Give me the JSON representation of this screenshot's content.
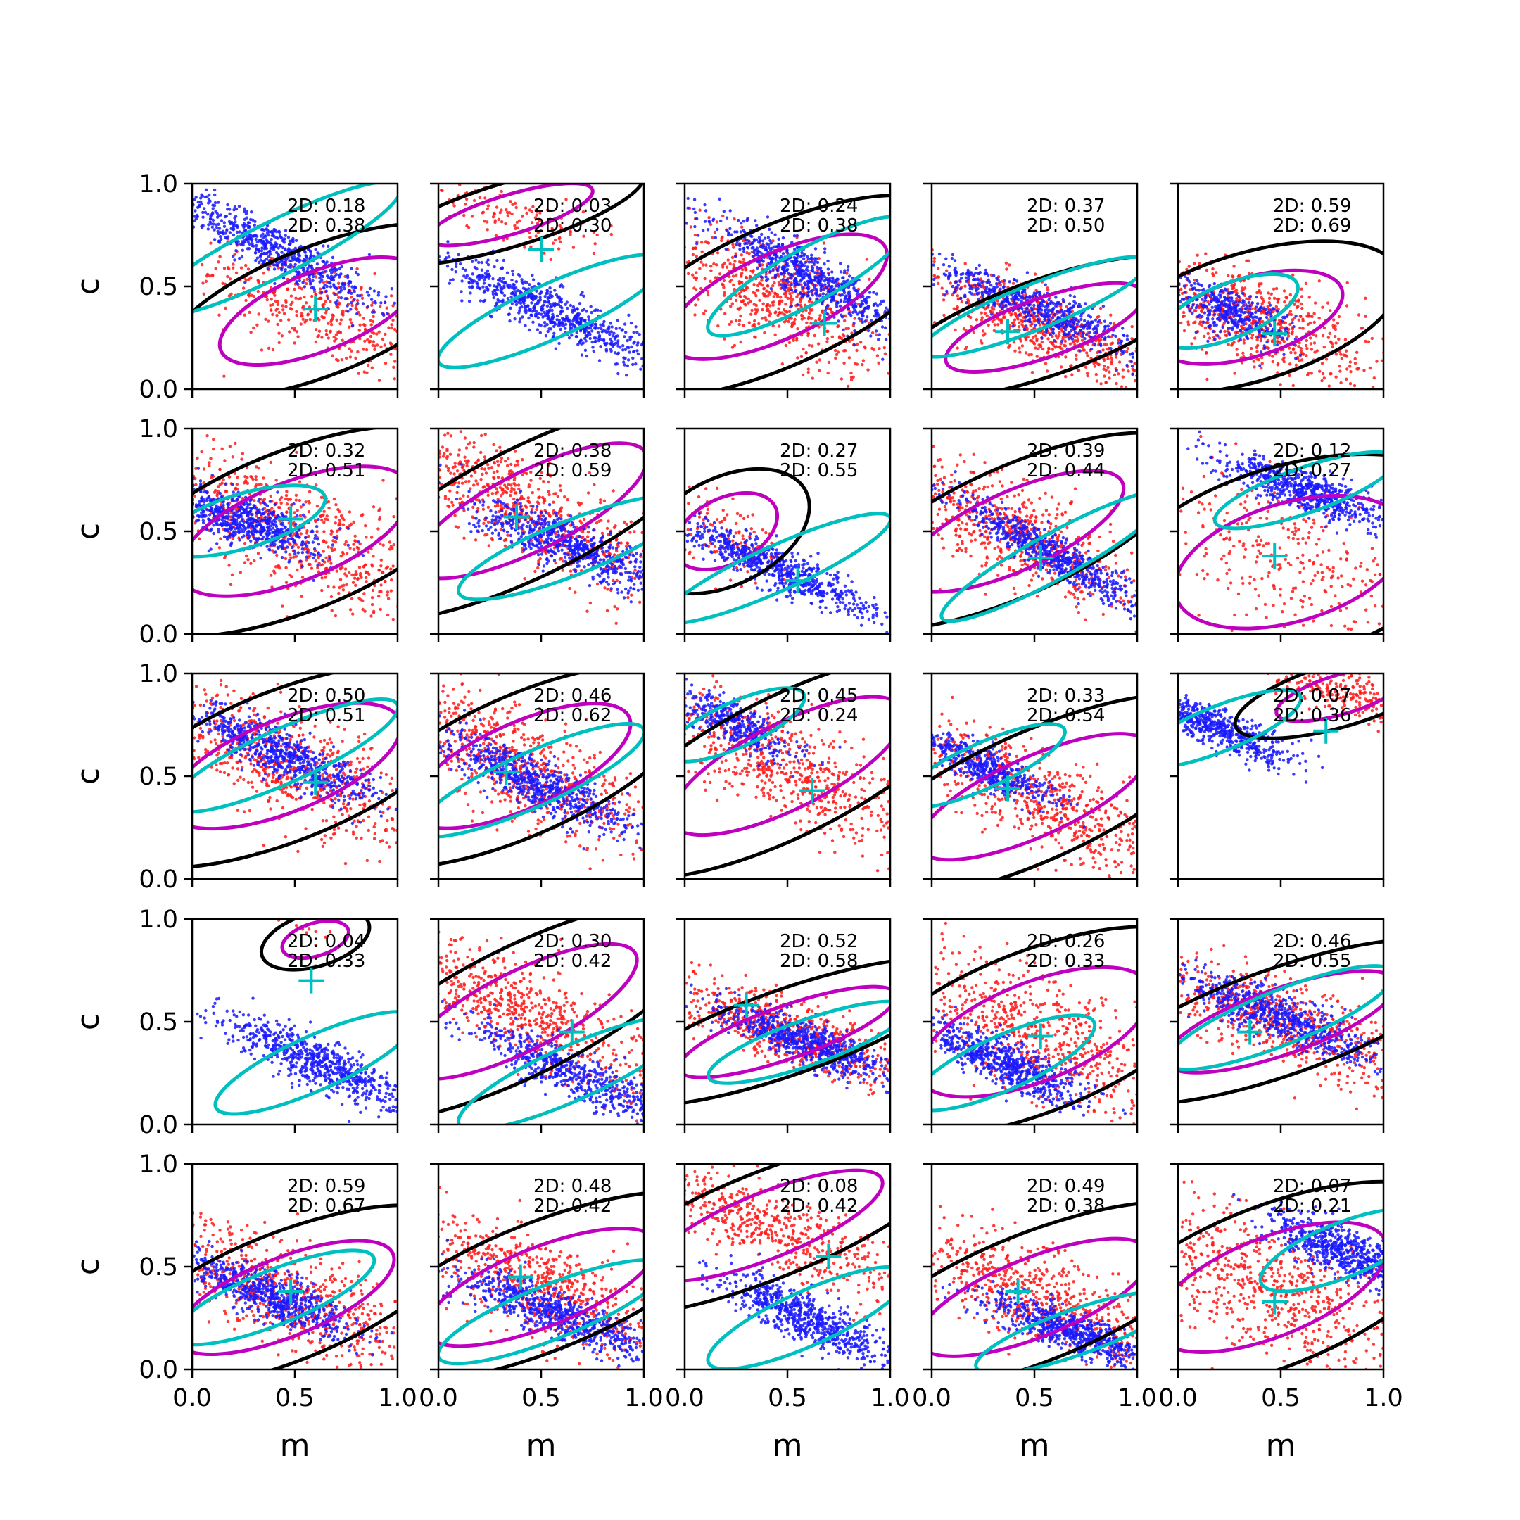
{
  "figure": {
    "xlabel": "m",
    "ylabel": "c",
    "xlim": [
      0,
      1
    ],
    "ylim": [
      0,
      1
    ],
    "xticks": [
      "0.0",
      "0.5",
      "1.0"
    ],
    "yticks": [
      "0.0",
      "0.5",
      "1.0"
    ]
  },
  "colors": {
    "sample_a": "#1a1aff",
    "sample_b": "#ff1a1a",
    "contour_black": "#000000",
    "contour_magenta": "#bf00bf",
    "contour_cyan": "#00bfbf",
    "marker": "#00bfbf"
  },
  "chart_data": [
    {
      "type": "scatter",
      "row": 0,
      "col": 0,
      "stat_labels": [
        "2D: 0.18",
        "2D: 0.38"
      ],
      "marker": [
        0.6,
        0.39
      ],
      "blue": {
        "center": [
          0.4,
          0.68
        ],
        "slope": -0.5,
        "spread": [
          0.28,
          0.06
        ],
        "n": 700
      },
      "red": {
        "center": [
          0.62,
          0.38
        ],
        "slope": -0.4,
        "spread": [
          0.3,
          0.12
        ],
        "n": 450
      }
    },
    {
      "type": "scatter",
      "row": 0,
      "col": 1,
      "stat_labels": [
        "2D: 0.03",
        "2D: 0.30"
      ],
      "marker": [
        0.5,
        0.68
      ],
      "blue": {
        "center": [
          0.55,
          0.38
        ],
        "slope": -0.45,
        "spread": [
          0.25,
          0.06
        ],
        "n": 700
      },
      "red": {
        "center": [
          0.35,
          0.85
        ],
        "slope": -0.3,
        "spread": [
          0.25,
          0.06
        ],
        "n": 150
      }
    },
    {
      "type": "scatter",
      "row": 0,
      "col": 2,
      "stat_labels": [
        "2D: 0.24",
        "2D: 0.38"
      ],
      "marker": [
        0.68,
        0.32
      ],
      "blue": {
        "center": [
          0.6,
          0.55
        ],
        "slope": -0.55,
        "spread": [
          0.22,
          0.06
        ],
        "n": 700
      },
      "red": {
        "center": [
          0.45,
          0.45
        ],
        "slope": -0.45,
        "spread": [
          0.33,
          0.13
        ],
        "n": 700
      }
    },
    {
      "type": "scatter",
      "row": 0,
      "col": 3,
      "stat_labels": [
        "2D: 0.37",
        "2D: 0.50"
      ],
      "marker": [
        0.37,
        0.28
      ],
      "blue": {
        "center": [
          0.5,
          0.4
        ],
        "slope": -0.4,
        "spread": [
          0.25,
          0.05
        ],
        "n": 600
      },
      "red": {
        "center": [
          0.55,
          0.3
        ],
        "slope": -0.35,
        "spread": [
          0.3,
          0.09
        ],
        "n": 700
      }
    },
    {
      "type": "scatter",
      "row": 0,
      "col": 4,
      "stat_labels": [
        "2D: 0.59",
        "2D: 0.69"
      ],
      "marker": [
        0.47,
        0.27
      ],
      "blue": {
        "center": [
          0.25,
          0.38
        ],
        "slope": -0.4,
        "spread": [
          0.15,
          0.06
        ],
        "n": 400
      },
      "red": {
        "center": [
          0.35,
          0.35
        ],
        "slope": -0.3,
        "spread": [
          0.28,
          0.12
        ],
        "n": 700
      }
    },
    {
      "type": "scatter",
      "row": 1,
      "col": 0,
      "stat_labels": [
        "2D: 0.32",
        "2D: 0.51"
      ],
      "marker": [
        0.48,
        0.56
      ],
      "blue": {
        "center": [
          0.25,
          0.55
        ],
        "slope": -0.3,
        "spread": [
          0.18,
          0.06
        ],
        "n": 700
      },
      "red": {
        "center": [
          0.5,
          0.5
        ],
        "slope": -0.4,
        "spread": [
          0.35,
          0.15
        ],
        "n": 700
      }
    },
    {
      "type": "scatter",
      "row": 1,
      "col": 1,
      "stat_labels": [
        "2D: 0.38",
        "2D: 0.59"
      ],
      "marker": [
        0.38,
        0.57
      ],
      "blue": {
        "center": [
          0.65,
          0.42
        ],
        "slope": -0.4,
        "spread": [
          0.25,
          0.06
        ],
        "n": 700
      },
      "red": {
        "center": [
          0.45,
          0.6
        ],
        "slope": -0.5,
        "spread": [
          0.35,
          0.12
        ],
        "n": 700
      }
    },
    {
      "type": "scatter",
      "row": 1,
      "col": 2,
      "stat_labels": [
        "2D: 0.27",
        "2D: 0.55"
      ],
      "marker": [
        0.55,
        0.26
      ],
      "blue": {
        "center": [
          0.45,
          0.32
        ],
        "slope": -0.45,
        "spread": [
          0.25,
          0.05
        ],
        "n": 700
      },
      "red": {
        "center": [
          0.2,
          0.5
        ],
        "slope": -0.5,
        "spread": [
          0.15,
          0.1
        ],
        "n": 120
      }
    },
    {
      "type": "scatter",
      "row": 1,
      "col": 3,
      "stat_labels": [
        "2D: 0.39",
        "2D: 0.44"
      ],
      "marker": [
        0.53,
        0.37
      ],
      "blue": {
        "center": [
          0.6,
          0.38
        ],
        "slope": -0.55,
        "spread": [
          0.25,
          0.05
        ],
        "n": 700
      },
      "red": {
        "center": [
          0.4,
          0.5
        ],
        "slope": -0.45,
        "spread": [
          0.33,
          0.12
        ],
        "n": 700
      }
    },
    {
      "type": "scatter",
      "row": 1,
      "col": 4,
      "stat_labels": [
        "2D: 0.12",
        "2D: 0.27"
      ],
      "marker": [
        0.47,
        0.38
      ],
      "blue": {
        "center": [
          0.62,
          0.7
        ],
        "slope": -0.35,
        "spread": [
          0.2,
          0.05
        ],
        "n": 700
      },
      "red": {
        "center": [
          0.55,
          0.35
        ],
        "slope": -0.3,
        "spread": [
          0.35,
          0.18
        ],
        "n": 350
      }
    },
    {
      "type": "scatter",
      "row": 2,
      "col": 0,
      "stat_labels": [
        "2D: 0.50",
        "2D: 0.51"
      ],
      "marker": [
        0.6,
        0.47
      ],
      "blue": {
        "center": [
          0.45,
          0.6
        ],
        "slope": -0.45,
        "spread": [
          0.25,
          0.06
        ],
        "n": 700
      },
      "red": {
        "center": [
          0.45,
          0.55
        ],
        "slope": -0.4,
        "spread": [
          0.35,
          0.14
        ],
        "n": 700
      }
    },
    {
      "type": "scatter",
      "row": 2,
      "col": 1,
      "stat_labels": [
        "2D: 0.46",
        "2D: 0.62"
      ],
      "marker": [
        0.33,
        0.52
      ],
      "blue": {
        "center": [
          0.45,
          0.48
        ],
        "slope": -0.45,
        "spread": [
          0.25,
          0.06
        ],
        "n": 700
      },
      "red": {
        "center": [
          0.4,
          0.55
        ],
        "slope": -0.45,
        "spread": [
          0.33,
          0.13
        ],
        "n": 700
      }
    },
    {
      "type": "scatter",
      "row": 2,
      "col": 2,
      "stat_labels": [
        "2D: 0.45",
        "2D: 0.24"
      ],
      "marker": [
        0.62,
        0.43
      ],
      "blue": {
        "center": [
          0.25,
          0.75
        ],
        "slope": -0.45,
        "spread": [
          0.15,
          0.05
        ],
        "n": 400
      },
      "red": {
        "center": [
          0.5,
          0.55
        ],
        "slope": -0.5,
        "spread": [
          0.35,
          0.13
        ],
        "n": 700
      }
    },
    {
      "type": "scatter",
      "row": 2,
      "col": 3,
      "stat_labels": [
        "2D: 0.33",
        "2D: 0.54"
      ],
      "marker": [
        0.37,
        0.44
      ],
      "blue": {
        "center": [
          0.25,
          0.55
        ],
        "slope": -0.45,
        "spread": [
          0.18,
          0.05
        ],
        "n": 500
      },
      "red": {
        "center": [
          0.5,
          0.4
        ],
        "slope": -0.45,
        "spread": [
          0.35,
          0.12
        ],
        "n": 700
      }
    },
    {
      "type": "scatter",
      "row": 2,
      "col": 4,
      "stat_labels": [
        "2D: 0.07",
        "2D: 0.36"
      ],
      "marker": [
        0.72,
        0.72
      ],
      "blue": {
        "center": [
          0.2,
          0.73
        ],
        "slope": -0.4,
        "spread": [
          0.18,
          0.05
        ],
        "n": 600
      },
      "red": {
        "center": [
          0.8,
          0.9
        ],
        "slope": -0.3,
        "spread": [
          0.2,
          0.06
        ],
        "n": 250
      }
    },
    {
      "type": "scatter",
      "row": 3,
      "col": 0,
      "stat_labels": [
        "2D: 0.04",
        "2D: 0.33"
      ],
      "marker": [
        0.58,
        0.7
      ],
      "blue": {
        "center": [
          0.6,
          0.3
        ],
        "slope": -0.45,
        "spread": [
          0.22,
          0.06
        ],
        "n": 700
      },
      "red": {
        "center": [
          0.6,
          0.9
        ],
        "slope": -0.3,
        "spread": [
          0.1,
          0.05
        ],
        "n": 10
      }
    },
    {
      "type": "scatter",
      "row": 3,
      "col": 1,
      "stat_labels": [
        "2D: 0.30",
        "2D: 0.42"
      ],
      "marker": [
        0.65,
        0.45
      ],
      "blue": {
        "center": [
          0.65,
          0.25
        ],
        "slope": -0.45,
        "spread": [
          0.25,
          0.06
        ],
        "n": 600
      },
      "red": {
        "center": [
          0.4,
          0.55
        ],
        "slope": -0.5,
        "spread": [
          0.35,
          0.12
        ],
        "n": 700
      }
    },
    {
      "type": "scatter",
      "row": 3,
      "col": 2,
      "stat_labels": [
        "2D: 0.52",
        "2D: 0.58"
      ],
      "marker": [
        0.3,
        0.58
      ],
      "blue": {
        "center": [
          0.6,
          0.4
        ],
        "slope": -0.35,
        "spread": [
          0.22,
          0.05
        ],
        "n": 700
      },
      "red": {
        "center": [
          0.5,
          0.45
        ],
        "slope": -0.35,
        "spread": [
          0.33,
          0.08
        ],
        "n": 700
      }
    },
    {
      "type": "scatter",
      "row": 3,
      "col": 3,
      "stat_labels": [
        "2D: 0.26",
        "2D: 0.33"
      ],
      "marker": [
        0.53,
        0.43
      ],
      "blue": {
        "center": [
          0.35,
          0.3
        ],
        "slope": -0.45,
        "spread": [
          0.2,
          0.06
        ],
        "n": 700
      },
      "red": {
        "center": [
          0.5,
          0.45
        ],
        "slope": -0.4,
        "spread": [
          0.35,
          0.15
        ],
        "n": 700
      }
    },
    {
      "type": "scatter",
      "row": 3,
      "col": 4,
      "stat_labels": [
        "2D: 0.46",
        "2D: 0.55"
      ],
      "marker": [
        0.35,
        0.45
      ],
      "blue": {
        "center": [
          0.5,
          0.52
        ],
        "slope": -0.4,
        "spread": [
          0.25,
          0.06
        ],
        "n": 700
      },
      "red": {
        "center": [
          0.5,
          0.5
        ],
        "slope": -0.35,
        "spread": [
          0.35,
          0.1
        ],
        "n": 700
      }
    },
    {
      "type": "scatter",
      "row": 4,
      "col": 0,
      "stat_labels": [
        "2D: 0.59",
        "2D: 0.67"
      ],
      "marker": [
        0.48,
        0.38
      ],
      "blue": {
        "center": [
          0.4,
          0.35
        ],
        "slope": -0.4,
        "spread": [
          0.22,
          0.06
        ],
        "n": 700
      },
      "red": {
        "center": [
          0.45,
          0.35
        ],
        "slope": -0.4,
        "spread": [
          0.33,
          0.12
        ],
        "n": 700
      }
    },
    {
      "type": "scatter",
      "row": 4,
      "col": 1,
      "stat_labels": [
        "2D: 0.48",
        "2D: 0.42"
      ],
      "marker": [
        0.4,
        0.45
      ],
      "blue": {
        "center": [
          0.55,
          0.28
        ],
        "slope": -0.4,
        "spread": [
          0.25,
          0.06
        ],
        "n": 700
      },
      "red": {
        "center": [
          0.5,
          0.4
        ],
        "slope": -0.4,
        "spread": [
          0.35,
          0.12
        ],
        "n": 700
      }
    },
    {
      "type": "scatter",
      "row": 4,
      "col": 2,
      "stat_labels": [
        "2D: 0.08",
        "2D: 0.42"
      ],
      "marker": [
        0.7,
        0.55
      ],
      "blue": {
        "center": [
          0.6,
          0.25
        ],
        "slope": -0.45,
        "spread": [
          0.22,
          0.06
        ],
        "n": 700
      },
      "red": {
        "center": [
          0.4,
          0.7
        ],
        "slope": -0.4,
        "spread": [
          0.35,
          0.1
        ],
        "n": 600
      }
    },
    {
      "type": "scatter",
      "row": 4,
      "col": 3,
      "stat_labels": [
        "2D: 0.49",
        "2D: 0.38"
      ],
      "marker": [
        0.42,
        0.38
      ],
      "blue": {
        "center": [
          0.7,
          0.18
        ],
        "slope": -0.35,
        "spread": [
          0.22,
          0.05
        ],
        "n": 700
      },
      "red": {
        "center": [
          0.5,
          0.35
        ],
        "slope": -0.4,
        "spread": [
          0.35,
          0.12
        ],
        "n": 700
      }
    },
    {
      "type": "scatter",
      "row": 4,
      "col": 4,
      "stat_labels": [
        "2D: 0.07",
        "2D: 0.21"
      ],
      "marker": [
        0.47,
        0.33
      ],
      "blue": {
        "center": [
          0.8,
          0.58
        ],
        "slope": -0.4,
        "spread": [
          0.18,
          0.06
        ],
        "n": 700
      },
      "red": {
        "center": [
          0.45,
          0.4
        ],
        "slope": -0.4,
        "spread": [
          0.35,
          0.15
        ],
        "n": 700
      }
    }
  ]
}
